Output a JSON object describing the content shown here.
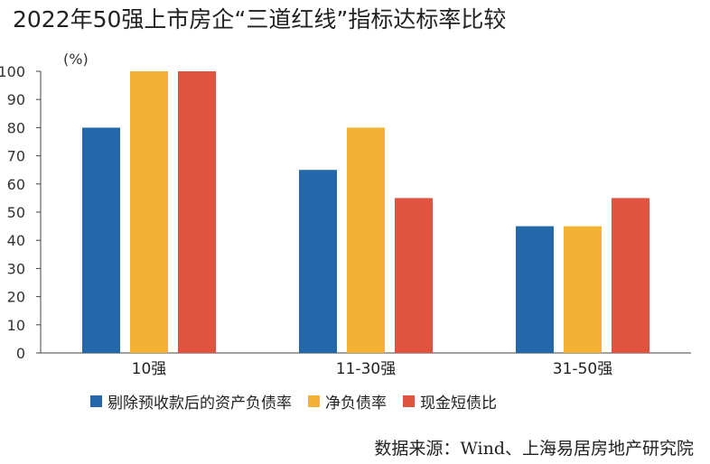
{
  "chart_data": {
    "type": "bar",
    "title": "2022年50强上市房企“三道红线”指标达标率比较",
    "unit_label": "(%)",
    "categories": [
      "10强",
      "11-30强",
      "31-50强"
    ],
    "series": [
      {
        "name": "剔除预收款后的资产负债率",
        "color": "#2468ac",
        "values": [
          80,
          65,
          45
        ]
      },
      {
        "name": "净负债率",
        "color": "#f3b234",
        "values": [
          100,
          80,
          45
        ]
      },
      {
        "name": "现金短债比",
        "color": "#e0533f",
        "values": [
          100,
          55,
          55
        ]
      }
    ],
    "ylim": [
      0,
      100
    ],
    "yticks": [
      0,
      10,
      20,
      30,
      40,
      50,
      60,
      70,
      80,
      90,
      100
    ],
    "grid": false,
    "legend_position": "bottom"
  },
  "source": "数据来源：Wind、上海易居房地产研究院"
}
